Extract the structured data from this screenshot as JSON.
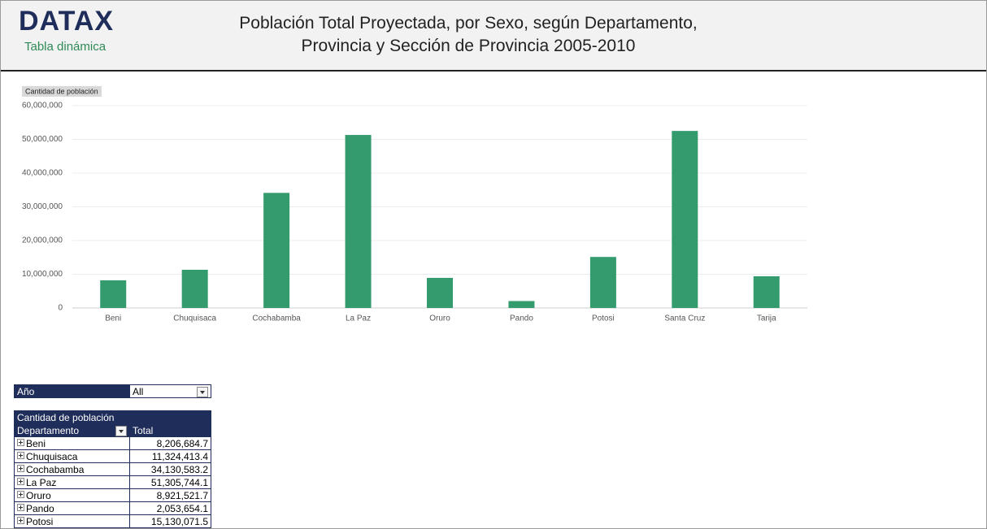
{
  "header": {
    "logo": "DATAX",
    "subtitle": "Tabla dinámica",
    "title_lines": [
      "Población Total Proyectada, por Sexo, según Departamento,",
      "Provincia y Sección de Provincia 2005-2010"
    ]
  },
  "chart_data": {
    "type": "bar",
    "y_label": "Cantidad de población",
    "categories": [
      "Beni",
      "Chuquisaca",
      "Cochabamba",
      "La Paz",
      "Oruro",
      "Pando",
      "Potosi",
      "Santa Cruz",
      "Tarija"
    ],
    "values": [
      8206684.7,
      11324413.4,
      34130583.2,
      51305744.1,
      8921521.7,
      2053654.1,
      15130071.5,
      52500000,
      9400000
    ],
    "color": "#339b6d",
    "ylim": [
      0,
      60000000
    ],
    "yticks": [
      0,
      {
        "value": 10000000,
        "label": "10,000,000"
      },
      {
        "value": 20000000,
        "label": "20,000,000"
      },
      {
        "value": 30000000,
        "label": "30,000,000"
      },
      {
        "value": 40000000,
        "label": "40,000,000"
      },
      {
        "value": 50000000,
        "label": "50,000,000"
      },
      {
        "value": 60000000,
        "label": "60,000,000"
      }
    ],
    "grid": true
  },
  "filter": {
    "label": "Año",
    "value": "All"
  },
  "table": {
    "caption": "Cantidad de población",
    "columns": [
      "Departamento",
      "Total"
    ],
    "rows": [
      [
        "Beni",
        "8,206,684.7"
      ],
      [
        "Chuquisaca",
        "11,324,413.4"
      ],
      [
        "Cochabamba",
        "34,130,583.2"
      ],
      [
        "La Paz",
        "51,305,744.1"
      ],
      [
        "Oruro",
        "8,921,521.7"
      ],
      [
        "Pando",
        "2,053,654.1"
      ],
      [
        "Potosi",
        "15,130,071.5"
      ]
    ]
  }
}
